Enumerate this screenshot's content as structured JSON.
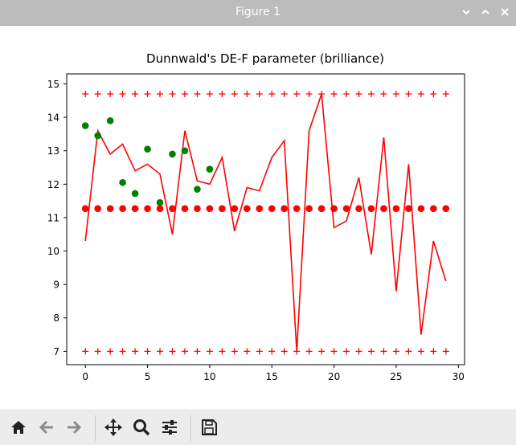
{
  "window": {
    "title": "Figure 1",
    "controls": [
      "minimize",
      "maximize",
      "close"
    ]
  },
  "chart_data": {
    "type": "line",
    "title": "Dunnwald's DE-F parameter (brilliance)",
    "xlabel": "",
    "ylabel": "",
    "xlim": [
      -1.5,
      30.5
    ],
    "ylim": [
      6.6,
      15.3
    ],
    "x_ticks": [
      0,
      5,
      10,
      15,
      20,
      25,
      30
    ],
    "y_ticks": [
      7,
      8,
      9,
      10,
      11,
      12,
      13,
      14,
      15
    ],
    "grid": false,
    "legend": "none",
    "colors": {
      "red": "#ff0000",
      "green": "#008000"
    },
    "series": [
      {
        "style": "red-line",
        "x": [
          0,
          1,
          2,
          3,
          4,
          5,
          6,
          7,
          8,
          9,
          10,
          11,
          12,
          13,
          14,
          15,
          16,
          17,
          18,
          19,
          20,
          21,
          22,
          23,
          24,
          25,
          26,
          27,
          28,
          29
        ],
        "values": [
          10.3,
          13.6,
          12.9,
          13.2,
          12.4,
          12.6,
          12.3,
          10.5,
          13.6,
          12.1,
          12.0,
          12.8,
          10.6,
          11.9,
          11.8,
          12.8,
          13.3,
          7.0,
          13.6,
          14.7,
          10.7,
          10.9,
          12.2,
          9.9,
          13.4,
          8.8,
          12.6,
          7.5,
          10.3,
          9.1
        ]
      },
      {
        "style": "red-plus",
        "x": [
          0,
          1,
          2,
          3,
          4,
          5,
          6,
          7,
          8,
          9,
          10,
          11,
          12,
          13,
          14,
          15,
          16,
          17,
          18,
          19,
          20,
          21,
          22,
          23,
          24,
          25,
          26,
          27,
          28,
          29
        ],
        "values": [
          14.7,
          14.7,
          14.7,
          14.7,
          14.7,
          14.7,
          14.7,
          14.7,
          14.7,
          14.7,
          14.7,
          14.7,
          14.7,
          14.7,
          14.7,
          14.7,
          14.7,
          14.7,
          14.7,
          14.7,
          14.7,
          14.7,
          14.7,
          14.7,
          14.7,
          14.7,
          14.7,
          14.7,
          14.7,
          14.7
        ]
      },
      {
        "style": "red-plus",
        "x": [
          0,
          1,
          2,
          3,
          4,
          5,
          6,
          7,
          8,
          9,
          10,
          11,
          12,
          13,
          14,
          15,
          16,
          17,
          18,
          19,
          20,
          21,
          22,
          23,
          24,
          25,
          26,
          27,
          28,
          29
        ],
        "values": [
          7.0,
          7.0,
          7.0,
          7.0,
          7.0,
          7.0,
          7.0,
          7.0,
          7.0,
          7.0,
          7.0,
          7.0,
          7.0,
          7.0,
          7.0,
          7.0,
          7.0,
          7.0,
          7.0,
          7.0,
          7.0,
          7.0,
          7.0,
          7.0,
          7.0,
          7.0,
          7.0,
          7.0,
          7.0,
          7.0
        ]
      },
      {
        "style": "red-dot",
        "x": [
          0,
          1,
          2,
          3,
          4,
          5,
          6,
          7,
          8,
          9,
          10,
          11,
          12,
          13,
          14,
          15,
          16,
          17,
          18,
          19,
          20,
          21,
          22,
          23,
          24,
          25,
          26,
          27,
          28,
          29
        ],
        "values": [
          11.27,
          11.27,
          11.27,
          11.27,
          11.27,
          11.27,
          11.27,
          11.27,
          11.27,
          11.27,
          11.27,
          11.27,
          11.27,
          11.27,
          11.27,
          11.27,
          11.27,
          11.27,
          11.27,
          11.27,
          11.27,
          11.27,
          11.27,
          11.27,
          11.27,
          11.27,
          11.27,
          11.27,
          11.27,
          11.27
        ]
      },
      {
        "style": "green-dot",
        "x": [
          0,
          1,
          2,
          3,
          4,
          5,
          6,
          7,
          8,
          9,
          10
        ],
        "values": [
          13.75,
          13.45,
          13.9,
          12.05,
          11.72,
          13.05,
          11.45,
          12.9,
          13.0,
          11.85,
          12.45
        ]
      }
    ]
  },
  "toolbar": {
    "tools": [
      "home-icon",
      "back-icon",
      "forward-icon",
      "pan-icon",
      "zoom-icon",
      "configure-icon",
      "save-icon"
    ]
  }
}
